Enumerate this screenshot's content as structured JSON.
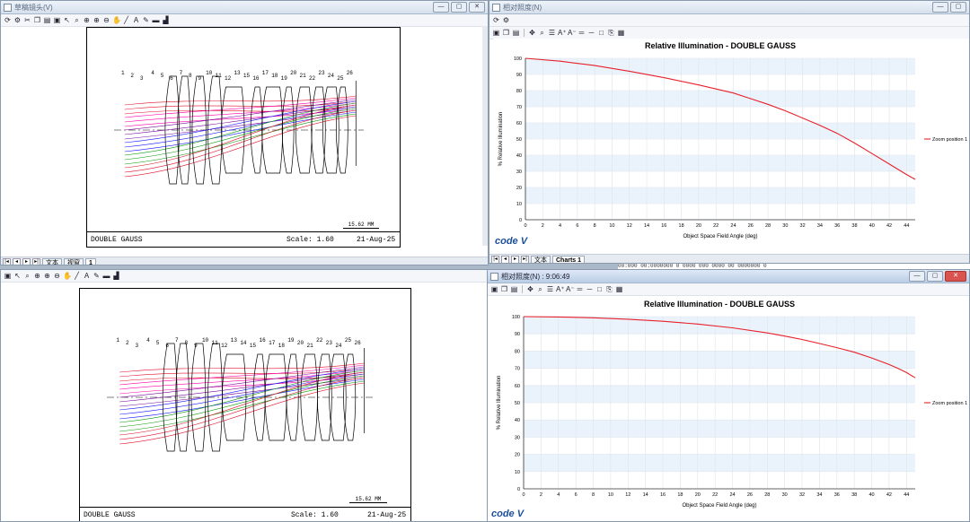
{
  "windows": {
    "layout_top": {
      "title": "草稿镜头(V)",
      "tabs": [
        "文本",
        "视窗",
        "1"
      ],
      "selected_tab": "1",
      "footer": {
        "name": "DOUBLE GAUSS",
        "scale": "Scale:  1.60",
        "date": "21-Aug-25"
      },
      "scalebar": "15.62  MM",
      "surface_labels": [
        "1",
        "2",
        "3",
        "4",
        "5",
        "6",
        "7",
        "8",
        "9",
        "10",
        "11",
        "12",
        "13",
        "15",
        "16",
        "17",
        "18",
        "19",
        "20",
        "21",
        "22",
        "23",
        "24",
        "25",
        "26"
      ]
    },
    "layout_bottom": {
      "footer": {
        "name": "DOUBLE GAUSS",
        "scale": "Scale:  1.60",
        "date": "21-Aug-25"
      },
      "scalebar": "15.62  MM",
      "surface_labels": [
        "1",
        "2",
        "3",
        "4",
        "5",
        "6",
        "7",
        "8",
        "9",
        "10",
        "11",
        "12",
        "13",
        "14",
        "15",
        "16",
        "17",
        "18",
        "19",
        "20",
        "21",
        "22",
        "23",
        "24",
        "25",
        "26"
      ]
    },
    "chart_top": {
      "title": "相对照度(N)",
      "tabs": [
        "文本",
        "Charts 1"
      ],
      "selected_tab": "Charts 1",
      "brand": "code V"
    },
    "chart_bottom": {
      "title": "相对照度(N) : 9:06:49",
      "brand": "code V"
    }
  },
  "toolbar_icons": [
    "refresh-icon",
    "settings-icon",
    "cut-icon",
    "copy-icon",
    "paste-icon",
    "save-icon",
    "pointer-icon",
    "zoom-box-icon",
    "zoom-fit-icon",
    "zoom-in-icon",
    "zoom-out-icon",
    "pan-icon",
    "line-icon",
    "text-icon",
    "pencil-icon",
    "dash-icon",
    "chart-icon"
  ],
  "text_log": "00:000  00:0000000 0 0000 000 0000 00 0000000  0",
  "chart_data": [
    {
      "type": "line",
      "title": "Relative Illumination - DOUBLE GAUSS",
      "xlabel": "Object Space Field Angle (deg)",
      "ylabel": "% Relative Illumination",
      "xlim": [
        0,
        45
      ],
      "ylim": [
        0,
        100
      ],
      "xticks": [
        0,
        2,
        4,
        6,
        8,
        10,
        12,
        14,
        16,
        18,
        20,
        22,
        24,
        26,
        28,
        30,
        32,
        34,
        36,
        38,
        40,
        42,
        44
      ],
      "yticks": [
        0,
        10,
        20,
        30,
        40,
        50,
        60,
        70,
        80,
        90,
        100
      ],
      "legend": "right",
      "series": [
        {
          "name": "Zoom position 1",
          "color": "#e8202a",
          "x": [
            0,
            4,
            8,
            12,
            16,
            20,
            24,
            26,
            28,
            30,
            32,
            34,
            36,
            38,
            40,
            42,
            44,
            45
          ],
          "y": [
            100,
            98.2,
            95.5,
            92,
            88,
            83.5,
            78.5,
            75,
            71.5,
            67.5,
            63,
            58.5,
            53.5,
            47.5,
            41,
            34.5,
            28,
            25
          ]
        }
      ]
    },
    {
      "type": "line",
      "title": "Relative Illumination - DOUBLE GAUSS",
      "xlabel": "Object Space Field Angle (deg)",
      "ylabel": "% Relative Illumination",
      "xlim": [
        0,
        45
      ],
      "ylim": [
        0,
        100
      ],
      "xticks": [
        0,
        2,
        4,
        6,
        8,
        10,
        12,
        14,
        16,
        18,
        20,
        22,
        24,
        26,
        28,
        30,
        32,
        34,
        36,
        38,
        40,
        42,
        44
      ],
      "yticks": [
        0,
        10,
        20,
        30,
        40,
        50,
        60,
        70,
        80,
        90,
        100
      ],
      "legend": "right",
      "series": [
        {
          "name": "Zoom position 1",
          "color": "#e8202a",
          "x": [
            0,
            4,
            8,
            12,
            16,
            20,
            24,
            28,
            30,
            32,
            34,
            36,
            38,
            40,
            42,
            43,
            44,
            45
          ],
          "y": [
            100,
            99.8,
            99.3,
            98.5,
            97.3,
            95.7,
            93.5,
            90.5,
            88.7,
            86.7,
            84.4,
            82,
            79.3,
            76,
            72.2,
            70,
            67.5,
            64.5
          ]
        }
      ]
    }
  ]
}
